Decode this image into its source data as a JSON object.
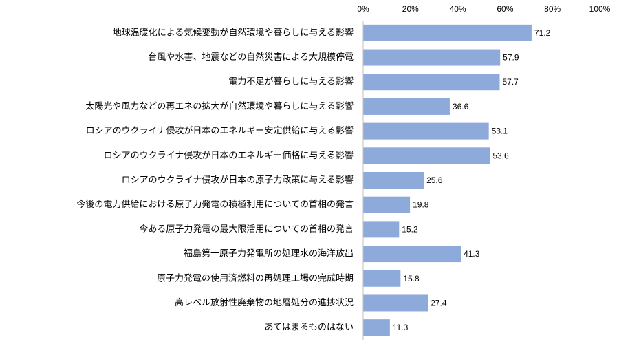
{
  "chart_data": {
    "type": "bar",
    "orientation": "horizontal",
    "categories": [
      "地球温暖化による気候変動が自然環境や暮らしに与える影響",
      "台風や水害、地震などの自然災害による大規模停電",
      "電力不足が暮らしに与える影響",
      "太陽光や風力などの再エネの拡大が自然環境や暮らしに与える影響",
      "ロシアのウクライナ侵攻が日本のエネルギー安定供給に与える影響",
      "ロシアのウクライナ侵攻が日本のエネルギー価格に与える影響",
      "ロシアのウクライナ侵攻が日本の原子力政策に与える影響",
      "今後の電力供給における原子力発電の積極利用についての首相の発言",
      "今ある原子力発電の最大限活用についての首相の発言",
      "福島第一原子力発電所の処理水の海洋放出",
      "原子力発電の使用済燃料の再処理工場の完成時期",
      "高レベル放射性廃棄物の地層処分の進捗状況",
      "あてはまるものはない"
    ],
    "values": [
      71.2,
      57.9,
      57.7,
      36.6,
      53.1,
      53.6,
      25.6,
      19.8,
      15.2,
      41.3,
      15.8,
      27.4,
      11.3
    ],
    "value_labels": [
      "71.2",
      "57.9",
      "57.7",
      "36.6",
      "53.1",
      "53.6",
      "25.6",
      "19.8",
      "15.2",
      "41.3",
      "15.8",
      "27.4",
      "11.3"
    ],
    "xlim": [
      0,
      100
    ],
    "xticks": [
      "0%",
      "20%",
      "40%",
      "60%",
      "80%",
      "100%"
    ],
    "axis_position": "top",
    "bar_color": "#8eaadb",
    "grid": false,
    "legend": "none"
  }
}
